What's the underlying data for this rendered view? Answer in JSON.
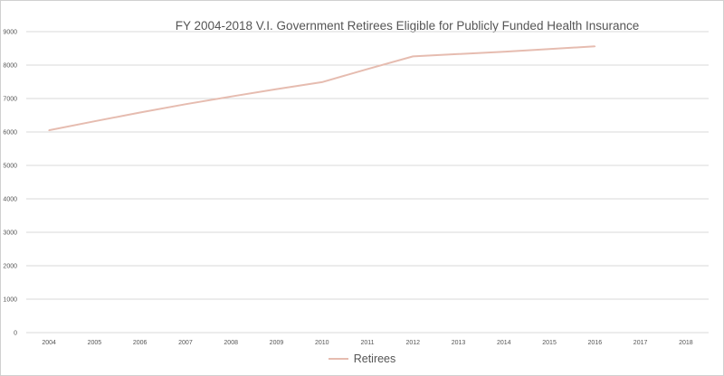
{
  "chart_data": {
    "type": "line",
    "title": "FY 2004-2018 V.I. Government Retirees Eligible for Publicly Funded Health Insurance",
    "xlabel": "",
    "ylabel": "",
    "categories": [
      "2004",
      "2005",
      "2006",
      "2007",
      "2008",
      "2009",
      "2010",
      "2011",
      "2012",
      "2013",
      "2014",
      "2015",
      "2016",
      "2017",
      "2018"
    ],
    "ylim": [
      0,
      9000
    ],
    "yticks": [
      0,
      1000,
      2000,
      3000,
      4000,
      5000,
      6000,
      7000,
      8000,
      9000
    ],
    "grid": true,
    "legend": "bottom",
    "series": [
      {
        "name": "Retirees",
        "color": "#e6bcb0",
        "values": [
          6050,
          6320,
          6580,
          6830,
          7060,
          7280,
          7490,
          7880,
          8260,
          8330,
          8400,
          8480,
          8560,
          null,
          null
        ]
      }
    ]
  }
}
